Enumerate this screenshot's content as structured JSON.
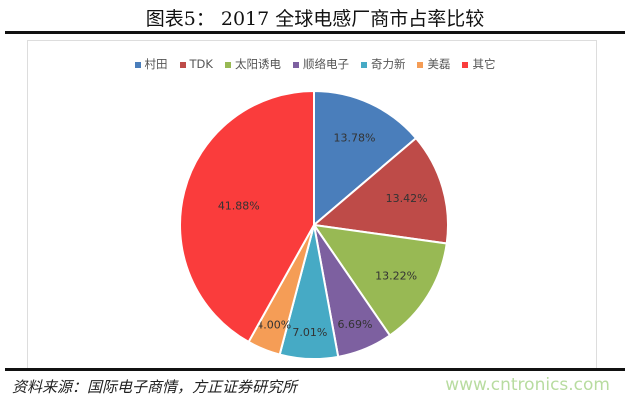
{
  "title": "图表5： 2017 全球电感厂商市占率比较",
  "source": "资料来源：国际电子商情，方正证券研究所",
  "watermark": "www.cntronics.com",
  "chart_data": {
    "type": "pie",
    "title": "",
    "legend_position": "top",
    "start": "12 o'clock, clockwise",
    "categories": [
      "村田",
      "TDK",
      "太阳诱电",
      "顺络电子",
      "奇力新",
      "美磊",
      "其它"
    ],
    "values": [
      13.78,
      13.42,
      13.22,
      6.69,
      7.01,
      4.0,
      41.88
    ],
    "labels": [
      "13.78%",
      "13.42%",
      "13.22%",
      "6.69%",
      "7.01%",
      "4.00%",
      "41.88%"
    ],
    "colors": [
      "#4a7ebb",
      "#be4b48",
      "#98b954",
      "#7d60a0",
      "#46aac5",
      "#f59d56",
      "#fa3c3c"
    ]
  }
}
